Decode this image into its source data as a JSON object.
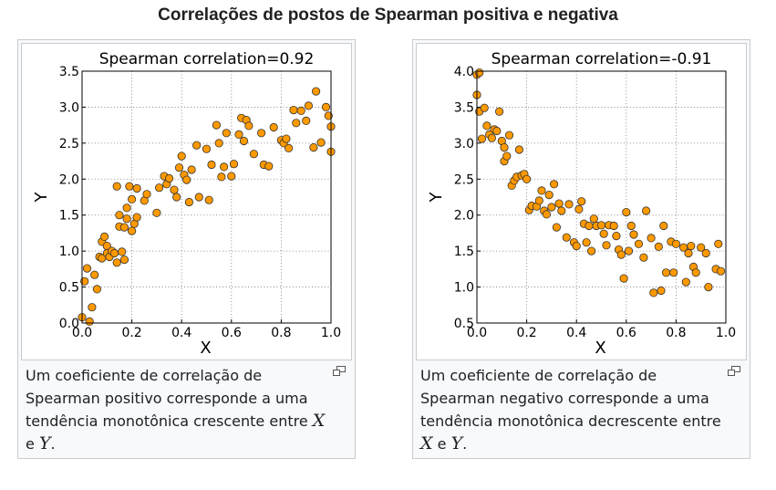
{
  "page": {
    "title": "Correlações de postos de Spearman positiva e negativa"
  },
  "figures": [
    {
      "caption": {
        "text_before": "Um coeficiente de correlação de Spearman positivo corresponde a uma tendência monotônica crescente entre",
        "var_x": "X",
        "text_middle": "e",
        "var_y": "Y",
        "text_after": "."
      },
      "icon": "magnify-icon"
    },
    {
      "caption": {
        "text_before": "Um coeficiente de correlação de Spearman negativo corresponde a uma tendência monotônica decrescente entre",
        "var_x": "X",
        "text_middle": "e",
        "var_y": "Y",
        "text_after": "."
      },
      "icon": "magnify-icon"
    }
  ],
  "chart_data": [
    {
      "type": "scatter",
      "title": "Spearman correlation=0.92",
      "xlabel": "X",
      "ylabel": "Y",
      "xlim": [
        0,
        1.0
      ],
      "ylim": [
        0,
        3.5
      ],
      "xticks": [
        "0.0",
        "0.2",
        "0.4",
        "0.6",
        "0.8",
        "1.0"
      ],
      "yticks": [
        "0.0",
        "0.5",
        "1.0",
        "1.5",
        "2.0",
        "2.5",
        "3.0",
        "3.5"
      ],
      "grid": true,
      "marker_color": "#ff9900",
      "edge_color": "#333333",
      "points": [
        [
          0.0,
          0.08
        ],
        [
          0.01,
          0.58
        ],
        [
          0.02,
          0.76
        ],
        [
          0.03,
          0.02
        ],
        [
          0.04,
          0.22
        ],
        [
          0.05,
          0.67
        ],
        [
          0.06,
          0.47
        ],
        [
          0.07,
          0.92
        ],
        [
          0.08,
          0.9
        ],
        [
          0.08,
          1.13
        ],
        [
          0.09,
          1.2
        ],
        [
          0.1,
          1.07
        ],
        [
          0.1,
          0.97
        ],
        [
          0.11,
          0.92
        ],
        [
          0.12,
          1.0
        ],
        [
          0.13,
          0.97
        ],
        [
          0.14,
          0.84
        ],
        [
          0.14,
          1.9
        ],
        [
          0.15,
          1.34
        ],
        [
          0.15,
          1.5
        ],
        [
          0.16,
          0.99
        ],
        [
          0.17,
          1.33
        ],
        [
          0.17,
          0.88
        ],
        [
          0.18,
          1.45
        ],
        [
          0.18,
          1.6
        ],
        [
          0.19,
          1.9
        ],
        [
          0.2,
          1.28
        ],
        [
          0.2,
          1.72
        ],
        [
          0.21,
          1.38
        ],
        [
          0.22,
          1.47
        ],
        [
          0.22,
          1.87
        ],
        [
          0.25,
          1.7
        ],
        [
          0.26,
          1.79
        ],
        [
          0.3,
          1.53
        ],
        [
          0.31,
          1.88
        ],
        [
          0.33,
          2.04
        ],
        [
          0.34,
          1.93
        ],
        [
          0.35,
          2.01
        ],
        [
          0.37,
          1.85
        ],
        [
          0.38,
          1.75
        ],
        [
          0.39,
          2.16
        ],
        [
          0.4,
          2.32
        ],
        [
          0.41,
          2.06
        ],
        [
          0.42,
          1.99
        ],
        [
          0.43,
          1.68
        ],
        [
          0.44,
          2.13
        ],
        [
          0.46,
          2.47
        ],
        [
          0.47,
          1.75
        ],
        [
          0.5,
          2.42
        ],
        [
          0.51,
          1.71
        ],
        [
          0.52,
          2.2
        ],
        [
          0.54,
          2.75
        ],
        [
          0.55,
          2.5
        ],
        [
          0.56,
          2.03
        ],
        [
          0.57,
          2.17
        ],
        [
          0.58,
          2.64
        ],
        [
          0.6,
          2.04
        ],
        [
          0.61,
          2.21
        ],
        [
          0.63,
          2.62
        ],
        [
          0.64,
          2.85
        ],
        [
          0.65,
          2.53
        ],
        [
          0.66,
          2.82
        ],
        [
          0.67,
          2.74
        ],
        [
          0.69,
          2.35
        ],
        [
          0.72,
          2.64
        ],
        [
          0.73,
          2.2
        ],
        [
          0.75,
          2.18
        ],
        [
          0.77,
          2.72
        ],
        [
          0.8,
          2.54
        ],
        [
          0.81,
          2.5
        ],
        [
          0.82,
          2.56
        ],
        [
          0.83,
          2.43
        ],
        [
          0.85,
          2.96
        ],
        [
          0.86,
          2.78
        ],
        [
          0.88,
          2.95
        ],
        [
          0.9,
          2.81
        ],
        [
          0.91,
          3.02
        ],
        [
          0.93,
          2.44
        ],
        [
          0.94,
          3.22
        ],
        [
          0.96,
          2.51
        ],
        [
          0.98,
          3.0
        ],
        [
          0.99,
          2.88
        ],
        [
          1.0,
          2.73
        ],
        [
          1.0,
          2.38
        ]
      ]
    },
    {
      "type": "scatter",
      "title": "Spearman correlation=-0.91",
      "xlabel": "X",
      "ylabel": "Y",
      "xlim": [
        0,
        1.0
      ],
      "ylim": [
        0.5,
        4.0
      ],
      "xticks": [
        "0.0",
        "0.2",
        "0.4",
        "0.6",
        "0.8",
        "1.0"
      ],
      "yticks": [
        "0.5",
        "1.0",
        "1.5",
        "2.0",
        "2.5",
        "3.0",
        "3.5",
        "4.0"
      ],
      "grid": true,
      "marker_color": "#ff9900",
      "edge_color": "#333333",
      "points": [
        [
          0.0,
          3.95
        ],
        [
          0.01,
          3.98
        ],
        [
          0.0,
          3.67
        ],
        [
          0.01,
          3.44
        ],
        [
          0.02,
          3.06
        ],
        [
          0.03,
          3.49
        ],
        [
          0.04,
          3.24
        ],
        [
          0.05,
          3.12
        ],
        [
          0.06,
          3.07
        ],
        [
          0.07,
          3.19
        ],
        [
          0.08,
          3.17
        ],
        [
          0.09,
          3.44
        ],
        [
          0.1,
          3.03
        ],
        [
          0.11,
          2.94
        ],
        [
          0.11,
          2.75
        ],
        [
          0.12,
          2.82
        ],
        [
          0.13,
          3.11
        ],
        [
          0.14,
          2.41
        ],
        [
          0.15,
          2.48
        ],
        [
          0.16,
          2.53
        ],
        [
          0.17,
          2.91
        ],
        [
          0.18,
          2.55
        ],
        [
          0.19,
          2.57
        ],
        [
          0.2,
          2.5
        ],
        [
          0.21,
          2.07
        ],
        [
          0.22,
          2.13
        ],
        [
          0.24,
          2.12
        ],
        [
          0.25,
          2.2
        ],
        [
          0.26,
          2.34
        ],
        [
          0.27,
          2.06
        ],
        [
          0.28,
          2.01
        ],
        [
          0.29,
          2.28
        ],
        [
          0.3,
          2.11
        ],
        [
          0.31,
          2.43
        ],
        [
          0.32,
          1.83
        ],
        [
          0.33,
          2.16
        ],
        [
          0.34,
          2.06
        ],
        [
          0.36,
          1.69
        ],
        [
          0.37,
          2.15
        ],
        [
          0.39,
          1.62
        ],
        [
          0.4,
          1.57
        ],
        [
          0.41,
          2.08
        ],
        [
          0.42,
          2.19
        ],
        [
          0.43,
          1.88
        ],
        [
          0.44,
          1.62
        ],
        [
          0.45,
          1.85
        ],
        [
          0.46,
          1.5
        ],
        [
          0.47,
          1.95
        ],
        [
          0.48,
          1.85
        ],
        [
          0.5,
          1.86
        ],
        [
          0.51,
          1.74
        ],
        [
          0.52,
          1.58
        ],
        [
          0.53,
          1.86
        ],
        [
          0.55,
          1.85
        ],
        [
          0.56,
          1.71
        ],
        [
          0.57,
          1.52
        ],
        [
          0.58,
          1.45
        ],
        [
          0.59,
          1.12
        ],
        [
          0.6,
          2.04
        ],
        [
          0.61,
          1.5
        ],
        [
          0.62,
          1.85
        ],
        [
          0.63,
          1.73
        ],
        [
          0.65,
          1.6
        ],
        [
          0.67,
          1.41
        ],
        [
          0.68,
          2.06
        ],
        [
          0.7,
          1.68
        ],
        [
          0.71,
          0.92
        ],
        [
          0.73,
          1.56
        ],
        [
          0.74,
          0.95
        ],
        [
          0.75,
          1.85
        ],
        [
          0.76,
          1.2
        ],
        [
          0.78,
          1.63
        ],
        [
          0.79,
          1.2
        ],
        [
          0.8,
          1.6
        ],
        [
          0.83,
          1.55
        ],
        [
          0.84,
          1.07
        ],
        [
          0.85,
          1.47
        ],
        [
          0.86,
          1.57
        ],
        [
          0.87,
          1.28
        ],
        [
          0.88,
          1.2
        ],
        [
          0.9,
          1.55
        ],
        [
          0.92,
          1.47
        ],
        [
          0.93,
          1.0
        ],
        [
          0.96,
          1.25
        ],
        [
          0.97,
          1.6
        ],
        [
          0.98,
          1.22
        ]
      ]
    }
  ]
}
